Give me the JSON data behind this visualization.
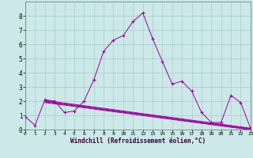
{
  "xlabel": "Windchill (Refroidissement éolien,°C)",
  "background_color": "#cce8e8",
  "grid_color": "#aacccc",
  "line_color": "#990099",
  "xlim": [
    0,
    23
  ],
  "ylim": [
    0,
    9
  ],
  "xticks": [
    0,
    1,
    2,
    3,
    4,
    5,
    6,
    7,
    8,
    9,
    10,
    11,
    12,
    13,
    14,
    15,
    16,
    17,
    18,
    19,
    20,
    21,
    22,
    23
  ],
  "yticks": [
    0,
    1,
    2,
    3,
    4,
    5,
    6,
    7,
    8
  ],
  "series": {
    "main": {
      "x": [
        0,
        1,
        2,
        3,
        4,
        5,
        6,
        7,
        8,
        9,
        10,
        11,
        12,
        13,
        14,
        15,
        16,
        17,
        18,
        19,
        20,
        21,
        22,
        23
      ],
      "y": [
        0.9,
        0.3,
        2.1,
        2.0,
        1.2,
        1.3,
        2.0,
        3.5,
        5.5,
        6.3,
        6.6,
        7.6,
        8.2,
        6.4,
        4.8,
        3.2,
        3.4,
        2.7,
        1.2,
        0.5,
        0.5,
        2.4,
        1.9,
        0.1
      ]
    },
    "linear1": {
      "x": [
        2,
        23
      ],
      "y": [
        2.05,
        0.1
      ]
    },
    "linear2": {
      "x": [
        2,
        23
      ],
      "y": [
        2.0,
        0.06
      ]
    },
    "linear3": {
      "x": [
        2,
        23
      ],
      "y": [
        1.95,
        0.02
      ]
    },
    "linear4": {
      "x": [
        2,
        23
      ],
      "y": [
        1.9,
        -0.02
      ]
    }
  }
}
